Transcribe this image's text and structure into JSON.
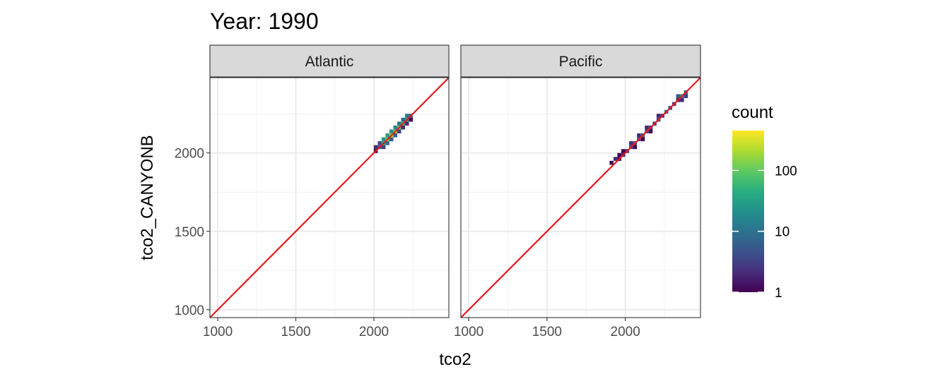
{
  "chart_data": {
    "type": "heatmap",
    "title": "Year: 1990",
    "xlabel": "tco2",
    "ylabel": "tco2_CANYONB",
    "xlim": [
      950,
      2480
    ],
    "ylim": [
      950,
      2480
    ],
    "x_ticks": [
      1000,
      1500,
      2000
    ],
    "y_ticks": [
      1000,
      1500,
      2000
    ],
    "grid": true,
    "reference_line": {
      "slope": 1,
      "intercept": 0,
      "color": "#e41a1c"
    },
    "bin_width": 25,
    "legend": {
      "title": "count",
      "scale": "log10",
      "range": [
        1,
        450
      ],
      "breaks": [
        1,
        10,
        100
      ],
      "labels": [
        "1",
        "10",
        "100"
      ],
      "position": "right"
    },
    "facets": [
      {
        "label": "Atlantic",
        "bins": [
          {
            "x": 2012,
            "y": 2012,
            "count": 1
          },
          {
            "x": 2012,
            "y": 2037,
            "count": 2
          },
          {
            "x": 2037,
            "y": 2037,
            "count": 6
          },
          {
            "x": 2037,
            "y": 2062,
            "count": 4
          },
          {
            "x": 2062,
            "y": 2037,
            "count": 3
          },
          {
            "x": 2062,
            "y": 2062,
            "count": 40
          },
          {
            "x": 2062,
            "y": 2087,
            "count": 25
          },
          {
            "x": 2087,
            "y": 2062,
            "count": 8
          },
          {
            "x": 2087,
            "y": 2087,
            "count": 120
          },
          {
            "x": 2087,
            "y": 2112,
            "count": 30
          },
          {
            "x": 2112,
            "y": 2087,
            "count": 5
          },
          {
            "x": 2112,
            "y": 2112,
            "count": 180
          },
          {
            "x": 2112,
            "y": 2137,
            "count": 20
          },
          {
            "x": 2137,
            "y": 2112,
            "count": 6
          },
          {
            "x": 2137,
            "y": 2137,
            "count": 150
          },
          {
            "x": 2137,
            "y": 2162,
            "count": 15
          },
          {
            "x": 2162,
            "y": 2137,
            "count": 3
          },
          {
            "x": 2162,
            "y": 2162,
            "count": 90
          },
          {
            "x": 2162,
            "y": 2187,
            "count": 10
          },
          {
            "x": 2187,
            "y": 2162,
            "count": 2
          },
          {
            "x": 2187,
            "y": 2187,
            "count": 60
          },
          {
            "x": 2187,
            "y": 2212,
            "count": 8
          },
          {
            "x": 2212,
            "y": 2187,
            "count": 2
          },
          {
            "x": 2212,
            "y": 2212,
            "count": 35
          },
          {
            "x": 2212,
            "y": 2237,
            "count": 12
          },
          {
            "x": 2237,
            "y": 2237,
            "count": 6
          },
          {
            "x": 2237,
            "y": 2212,
            "count": 1
          }
        ]
      },
      {
        "label": "Pacific",
        "bins": [
          {
            "x": 1912,
            "y": 1937,
            "count": 1
          },
          {
            "x": 1937,
            "y": 1962,
            "count": 2
          },
          {
            "x": 1962,
            "y": 1987,
            "count": 1
          },
          {
            "x": 1962,
            "y": 1962,
            "count": 1
          },
          {
            "x": 1987,
            "y": 1987,
            "count": 2
          },
          {
            "x": 1987,
            "y": 2012,
            "count": 1
          },
          {
            "x": 2012,
            "y": 2012,
            "count": 3
          },
          {
            "x": 2037,
            "y": 2037,
            "count": 4
          },
          {
            "x": 2037,
            "y": 2062,
            "count": 2
          },
          {
            "x": 2062,
            "y": 2062,
            "count": 5
          },
          {
            "x": 2062,
            "y": 2037,
            "count": 1
          },
          {
            "x": 2087,
            "y": 2087,
            "count": 4
          },
          {
            "x": 2087,
            "y": 2112,
            "count": 2
          },
          {
            "x": 2112,
            "y": 2112,
            "count": 6
          },
          {
            "x": 2112,
            "y": 2087,
            "count": 1
          },
          {
            "x": 2137,
            "y": 2137,
            "count": 5
          },
          {
            "x": 2137,
            "y": 2162,
            "count": 2
          },
          {
            "x": 2162,
            "y": 2162,
            "count": 3
          },
          {
            "x": 2162,
            "y": 2137,
            "count": 1
          },
          {
            "x": 2187,
            "y": 2187,
            "count": 3
          },
          {
            "x": 2212,
            "y": 2212,
            "count": 4
          },
          {
            "x": 2212,
            "y": 2237,
            "count": 2
          },
          {
            "x": 2237,
            "y": 2237,
            "count": 3
          },
          {
            "x": 2262,
            "y": 2262,
            "count": 12
          },
          {
            "x": 2287,
            "y": 2287,
            "count": 4
          },
          {
            "x": 2312,
            "y": 2312,
            "count": 3
          },
          {
            "x": 2337,
            "y": 2337,
            "count": 2
          },
          {
            "x": 2337,
            "y": 2362,
            "count": 6
          },
          {
            "x": 2362,
            "y": 2362,
            "count": 15
          },
          {
            "x": 2362,
            "y": 2337,
            "count": 2
          },
          {
            "x": 2387,
            "y": 2387,
            "count": 8
          },
          {
            "x": 2387,
            "y": 2362,
            "count": 3
          }
        ]
      }
    ]
  }
}
